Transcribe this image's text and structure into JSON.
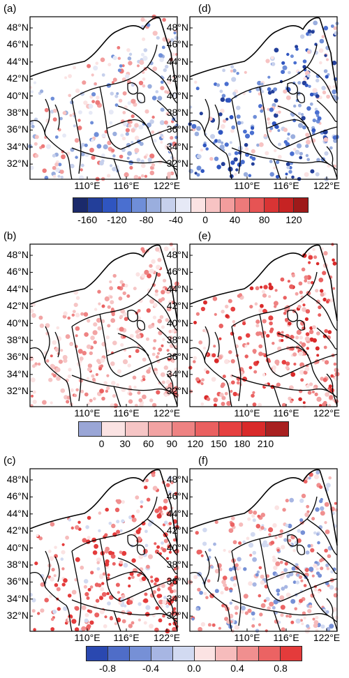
{
  "panels": {
    "a": {
      "label": "(a)"
    },
    "b": {
      "label": "(b)"
    },
    "c": {
      "label": "(c)"
    },
    "d": {
      "label": "(d)"
    },
    "e": {
      "label": "(e)"
    },
    "f": {
      "label": "(f)"
    }
  },
  "latitude_labels": [
    "48°N",
    "46°N",
    "44°N",
    "42°N",
    "40°N",
    "38°N",
    "36°N",
    "34°N",
    "32°N"
  ],
  "longitude_labels": [
    "110°E",
    "116°E",
    "122°E"
  ],
  "colorbars": [
    {
      "tick_labels": [
        "-160",
        "-120",
        "-80",
        "-40",
        "0",
        "40",
        "80",
        "120"
      ],
      "colors": [
        "#1b2a6b",
        "#233f9a",
        "#2f55c0",
        "#4a6fd0",
        "#6f8ed8",
        "#9aaede",
        "#c6d0ec",
        "#e6e9f6",
        "#fbe3e3",
        "#f7c3c3",
        "#f29d9d",
        "#ed7a7a",
        "#e65454",
        "#d93434",
        "#c62323",
        "#9e1a1a"
      ]
    },
    {
      "tick_labels": [
        "0",
        "30",
        "60",
        "90",
        "120",
        "150",
        "180",
        "210"
      ],
      "colors": [
        "#9aa6d6",
        "#fbe3e3",
        "#f6c5c5",
        "#f2a3a3",
        "#ee8282",
        "#ea6060",
        "#e64040",
        "#d92a2a",
        "#a82020"
      ]
    },
    {
      "tick_labels": [
        "-0.8",
        "-0.4",
        "0.0",
        "0.4",
        "0.8"
      ],
      "colors": [
        "#2a48b0",
        "#4f6dc8",
        "#7690d6",
        "#a7b6e3",
        "#d2daf1",
        "#fbe3e3",
        "#f6bcbc",
        "#f08f8f",
        "#eb6363",
        "#e43b3b"
      ]
    }
  ]
}
